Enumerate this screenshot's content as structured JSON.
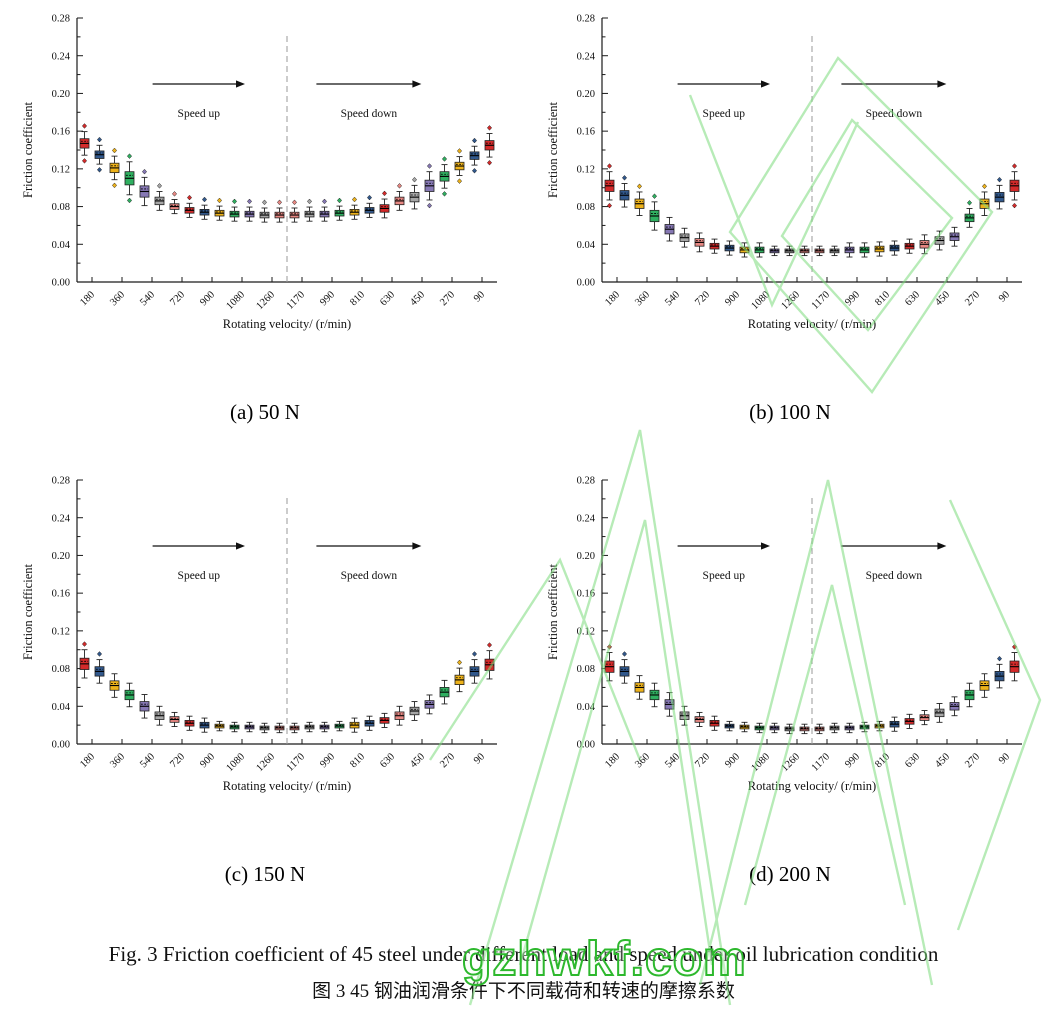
{
  "figure": {
    "caption_en": "Fig. 3 Friction coefficient of 45 steel under different load and speed under oil lubrication condition",
    "caption_zh": "图 3 45 钢油润滑条件下不同载荷和转速的摩擦系数",
    "watermark_text": "gzhwkf.com",
    "watermark_color": "#2db82d",
    "watermark_pattern_color": "#7ddc7d"
  },
  "palette": [
    "#d42a2a",
    "#31588c",
    "#edb21a",
    "#2faf60",
    "#8678b4",
    "#a6a6a6",
    "#e78782"
  ],
  "chart_data": [
    {
      "type": "box",
      "label": "(a) 50 N",
      "load": "50 N",
      "xlabel": "Rotating velocity/ (r/min)",
      "ylabel": "Friction coefficient",
      "ylim": [
        0,
        0.28
      ],
      "ytick_step": 0.04,
      "categories": [
        "180",
        "360",
        "540",
        "720",
        "900",
        "1080",
        "1260",
        "1170",
        "990",
        "810",
        "630",
        "450",
        "270",
        "90"
      ],
      "boxes_per_velocity": 2,
      "annotations": {
        "left_arrow_label": "Speed up",
        "right_arrow_label": "Speed down"
      },
      "medians": [
        0.147,
        0.135,
        0.121,
        0.11,
        0.096,
        0.086,
        0.08,
        0.076,
        0.074,
        0.073,
        0.072,
        0.072,
        0.071,
        0.071,
        0.071,
        0.072,
        0.072,
        0.073,
        0.074,
        0.076,
        0.078,
        0.086,
        0.09,
        0.102,
        0.112,
        0.123,
        0.134,
        0.145
      ],
      "box_half_heights": [
        0.005,
        0.004,
        0.005,
        0.007,
        0.006,
        0.004,
        0.003,
        0.003,
        0.003,
        0.003,
        0.003,
        0.003,
        0.003,
        0.003,
        0.003,
        0.003,
        0.003,
        0.003,
        0.003,
        0.003,
        0.004,
        0.004,
        0.005,
        0.006,
        0.005,
        0.004,
        0.004,
        0.005
      ]
    },
    {
      "type": "box",
      "label": "(b) 100 N",
      "load": "100 N",
      "xlabel": "Rotating velocity/ (r/min)",
      "ylabel": "Friction coefficient",
      "ylim": [
        0,
        0.28
      ],
      "ytick_step": 0.04,
      "categories": [
        "180",
        "360",
        "540",
        "720",
        "900",
        "1080",
        "1260",
        "1170",
        "990",
        "810",
        "630",
        "450",
        "270",
        "90"
      ],
      "boxes_per_velocity": 2,
      "annotations": {
        "left_arrow_label": "Speed up",
        "right_arrow_label": "Speed down"
      },
      "medians": [
        0.102,
        0.092,
        0.083,
        0.07,
        0.056,
        0.047,
        0.042,
        0.038,
        0.036,
        0.034,
        0.034,
        0.033,
        0.033,
        0.033,
        0.033,
        0.033,
        0.034,
        0.034,
        0.035,
        0.036,
        0.038,
        0.04,
        0.044,
        0.048,
        0.068,
        0.083,
        0.09,
        0.102
      ],
      "box_half_heights": [
        0.006,
        0.005,
        0.005,
        0.006,
        0.005,
        0.004,
        0.004,
        0.003,
        0.003,
        0.003,
        0.003,
        0.002,
        0.002,
        0.002,
        0.002,
        0.002,
        0.003,
        0.003,
        0.003,
        0.003,
        0.003,
        0.004,
        0.004,
        0.004,
        0.004,
        0.005,
        0.005,
        0.006
      ]
    },
    {
      "type": "box",
      "label": "(c) 150 N",
      "load": "150 N",
      "xlabel": "Rotating velocity/ (r/min)",
      "ylabel": "Friction coefficient",
      "ylim": [
        0,
        0.28
      ],
      "ytick_step": 0.04,
      "categories": [
        "180",
        "360",
        "540",
        "720",
        "900",
        "1080",
        "1260",
        "1170",
        "990",
        "810",
        "630",
        "450",
        "270",
        "90"
      ],
      "boxes_per_velocity": 2,
      "annotations": {
        "left_arrow_label": "Speed up",
        "right_arrow_label": "Speed down"
      },
      "medians": [
        0.085,
        0.077,
        0.062,
        0.052,
        0.04,
        0.03,
        0.026,
        0.022,
        0.02,
        0.019,
        0.018,
        0.018,
        0.017,
        0.017,
        0.017,
        0.018,
        0.018,
        0.019,
        0.02,
        0.022,
        0.025,
        0.03,
        0.035,
        0.042,
        0.055,
        0.068,
        0.077,
        0.084
      ],
      "box_half_heights": [
        0.006,
        0.005,
        0.005,
        0.005,
        0.005,
        0.004,
        0.003,
        0.003,
        0.003,
        0.002,
        0.002,
        0.002,
        0.002,
        0.002,
        0.002,
        0.002,
        0.002,
        0.002,
        0.003,
        0.003,
        0.003,
        0.004,
        0.004,
        0.004,
        0.005,
        0.005,
        0.005,
        0.006
      ]
    },
    {
      "type": "box",
      "label": "(d) 200 N",
      "load": "200 N",
      "xlabel": "Rotating velocity/ (r/min)",
      "ylabel": "Friction coefficient",
      "ylim": [
        0,
        0.28
      ],
      "ytick_step": 0.04,
      "categories": [
        "180",
        "360",
        "540",
        "720",
        "900",
        "1080",
        "1260",
        "1170",
        "990",
        "810",
        "630",
        "450",
        "270",
        "90"
      ],
      "boxes_per_velocity": 2,
      "annotations": {
        "left_arrow_label": "Speed up",
        "right_arrow_label": "Speed down"
      },
      "medians": [
        0.082,
        0.077,
        0.06,
        0.052,
        0.042,
        0.03,
        0.026,
        0.022,
        0.019,
        0.018,
        0.017,
        0.017,
        0.016,
        0.016,
        0.016,
        0.017,
        0.017,
        0.018,
        0.019,
        0.021,
        0.024,
        0.028,
        0.033,
        0.04,
        0.052,
        0.062,
        0.072,
        0.082
      ],
      "box_half_heights": [
        0.006,
        0.005,
        0.005,
        0.005,
        0.005,
        0.004,
        0.003,
        0.003,
        0.002,
        0.002,
        0.002,
        0.002,
        0.002,
        0.002,
        0.002,
        0.002,
        0.002,
        0.002,
        0.002,
        0.003,
        0.003,
        0.003,
        0.004,
        0.004,
        0.005,
        0.005,
        0.005,
        0.006
      ]
    }
  ]
}
